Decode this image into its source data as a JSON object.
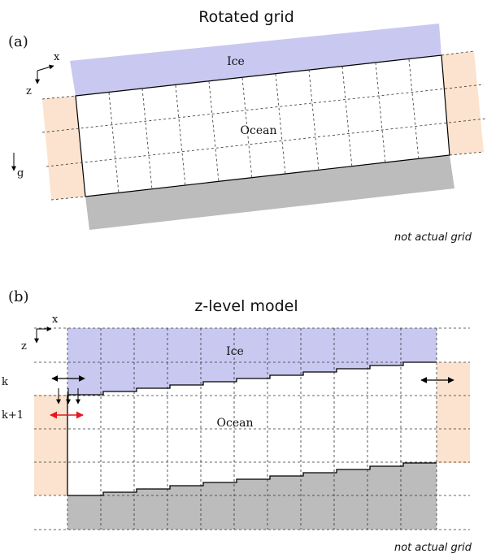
{
  "panel_a": {
    "title": "Rotated grid",
    "label": "(a)",
    "ice_label": "Ice",
    "ocean_label": "Ocean",
    "axis_x": "x",
    "axis_z": "z",
    "gravity": "g",
    "note": "not actual grid"
  },
  "panel_b": {
    "title": "z-level model",
    "label": "(b)",
    "ice_label": "Ice",
    "ocean_label": "Ocean",
    "axis_x": "x",
    "axis_z": "z",
    "level_k": "k",
    "level_k1": "k+1",
    "note": "not actual grid"
  },
  "colors": {
    "ice": "#c8c8f0",
    "bedrock": "#bcbcbc",
    "boundary": "#fbe3cf",
    "flux_arrow": "#e8141e",
    "line": "#000000"
  }
}
